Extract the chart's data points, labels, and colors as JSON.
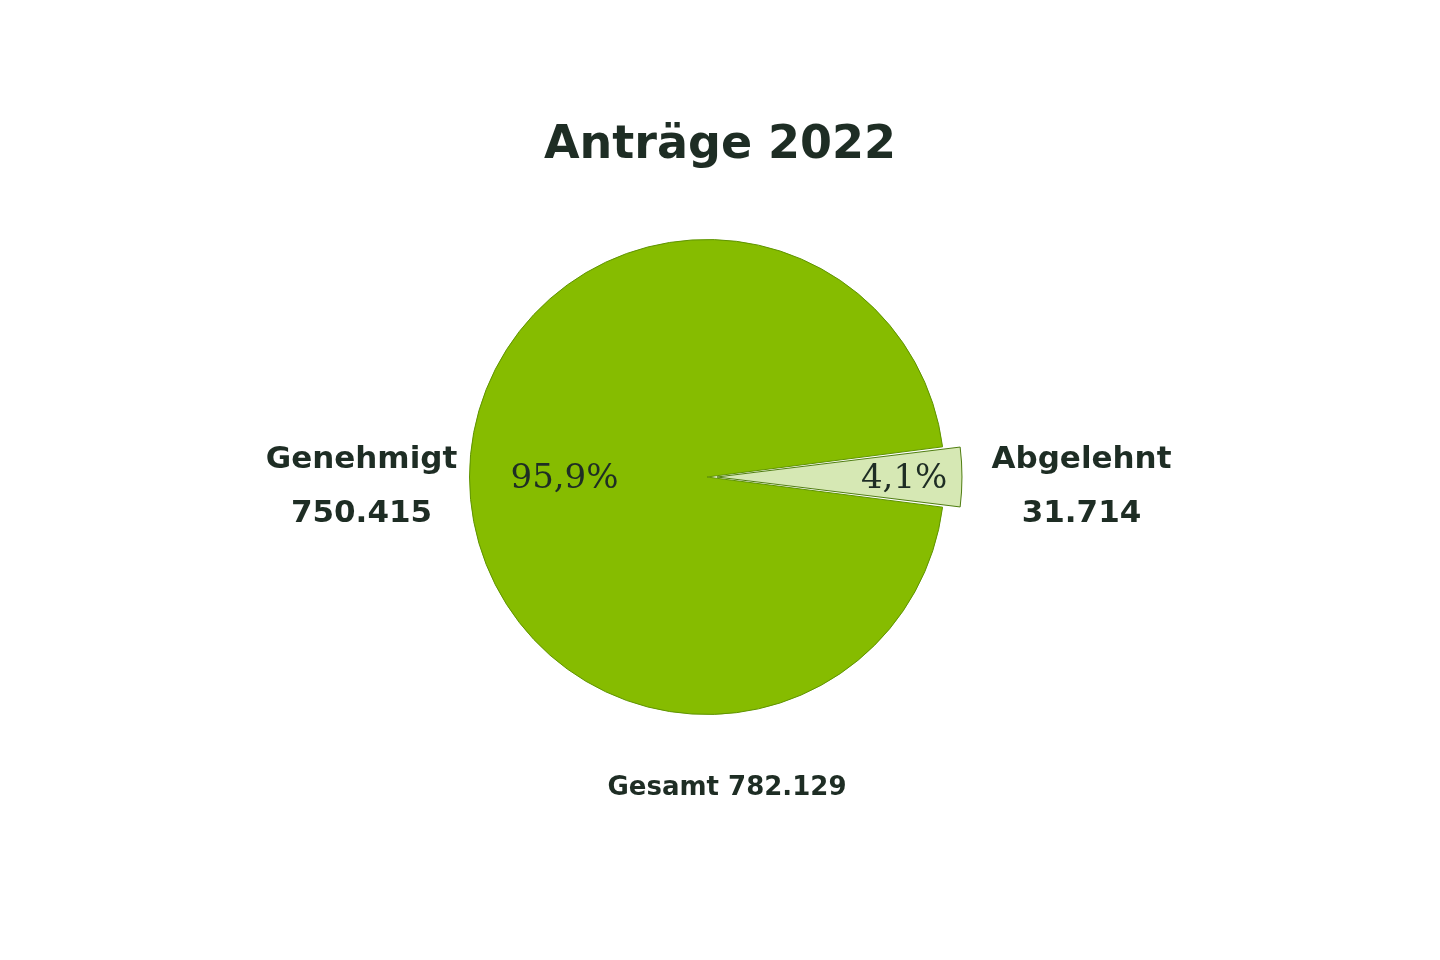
{
  "chart_data": {
    "type": "pie",
    "title": "Anträge 2022",
    "categories": [
      "Genehmigt",
      "Abgelehnt"
    ],
    "values": [
      750415,
      31714
    ],
    "colors": [
      "#86bc00",
      "#d6e8b4"
    ],
    "value_labels": [
      "750.415",
      "31.714"
    ],
    "annotations": [
      {
        "text": "95,9%",
        "x": "Genehmigt"
      },
      {
        "text": "4,1%",
        "x": "Abgelehnt"
      },
      "Gesamt 782.129"
    ],
    "legend": false
  }
}
